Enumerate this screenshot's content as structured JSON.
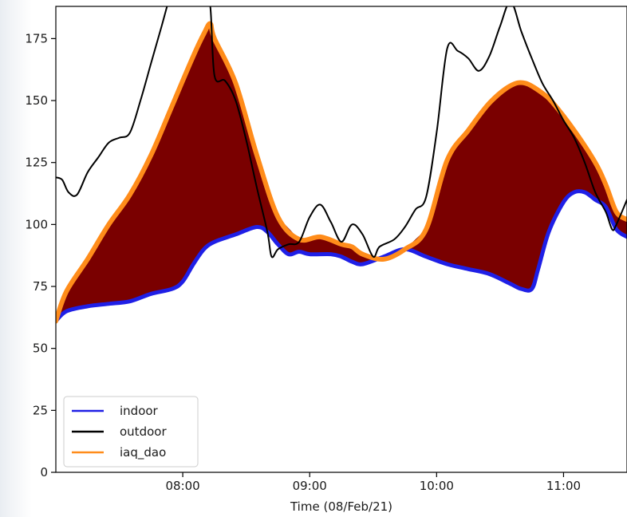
{
  "chart_data": {
    "type": "line",
    "xlabel": "Time (08/Feb/21)",
    "ylabel": "",
    "x_ticks": [
      "08:00",
      "09:00",
      "10:00",
      "11:00"
    ],
    "y_ticks": [
      0,
      25,
      50,
      75,
      100,
      125,
      150,
      175
    ],
    "xlim": [
      "07:00",
      "11:30"
    ],
    "ylim": [
      0,
      188
    ],
    "grid": false,
    "legend_position": "lower-left",
    "fill_between": {
      "upper": "iaq_dao",
      "lower": "indoor",
      "color": "#7a0000"
    },
    "series": [
      {
        "name": "indoor",
        "color": "#1f1fe6",
        "points": [
          [
            "07:00",
            61
          ],
          [
            "07:05",
            65
          ],
          [
            "07:15",
            67
          ],
          [
            "07:25",
            68
          ],
          [
            "07:35",
            69
          ],
          [
            "07:45",
            72
          ],
          [
            "07:55",
            74
          ],
          [
            "08:00",
            77
          ],
          [
            "08:05",
            84
          ],
          [
            "08:10",
            90
          ],
          [
            "08:15",
            93
          ],
          [
            "08:25",
            96
          ],
          [
            "08:35",
            99
          ],
          [
            "08:40",
            97
          ],
          [
            "08:45",
            92
          ],
          [
            "08:50",
            88
          ],
          [
            "08:55",
            89
          ],
          [
            "09:00",
            88
          ],
          [
            "09:10",
            88
          ],
          [
            "09:15",
            87
          ],
          [
            "09:20",
            85
          ],
          [
            "09:25",
            84
          ],
          [
            "09:35",
            87
          ],
          [
            "09:45",
            90
          ],
          [
            "09:55",
            87
          ],
          [
            "10:05",
            84
          ],
          [
            "10:15",
            82
          ],
          [
            "10:25",
            80
          ],
          [
            "10:35",
            76
          ],
          [
            "10:40",
            74
          ],
          [
            "10:45",
            74
          ],
          [
            "10:48",
            82
          ],
          [
            "10:53",
            97
          ],
          [
            "11:00",
            109
          ],
          [
            "11:05",
            113
          ],
          [
            "11:10",
            113
          ],
          [
            "11:15",
            110
          ],
          [
            "11:20",
            107
          ],
          [
            "11:25",
            98
          ],
          [
            "11:30",
            95
          ]
        ]
      },
      {
        "name": "outdoor",
        "color": "#000000",
        "points": [
          [
            "07:00",
            119
          ],
          [
            "07:03",
            118
          ],
          [
            "07:06",
            113
          ],
          [
            "07:10",
            112
          ],
          [
            "07:15",
            121
          ],
          [
            "07:20",
            127
          ],
          [
            "07:25",
            133
          ],
          [
            "07:30",
            135
          ],
          [
            "07:35",
            137
          ],
          [
            "07:40",
            150
          ],
          [
            "07:45",
            165
          ],
          [
            "07:50",
            180
          ],
          [
            "07:55",
            195
          ],
          [
            "08:00",
            205
          ],
          [
            "08:05",
            198
          ],
          [
            "08:10",
            195
          ],
          [
            "08:13",
            188
          ],
          [
            "08:15",
            160
          ],
          [
            "08:20",
            158
          ],
          [
            "08:25",
            150
          ],
          [
            "08:30",
            134
          ],
          [
            "08:35",
            115
          ],
          [
            "08:40",
            97
          ],
          [
            "08:42",
            87
          ],
          [
            "08:45",
            90
          ],
          [
            "08:50",
            92
          ],
          [
            "08:55",
            93
          ],
          [
            "09:00",
            103
          ],
          [
            "09:05",
            108
          ],
          [
            "09:10",
            101
          ],
          [
            "09:15",
            93
          ],
          [
            "09:20",
            100
          ],
          [
            "09:25",
            96
          ],
          [
            "09:30",
            87
          ],
          [
            "09:33",
            91
          ],
          [
            "09:40",
            94
          ],
          [
            "09:45",
            99
          ],
          [
            "09:50",
            106
          ],
          [
            "09:55",
            111
          ],
          [
            "10:00",
            137
          ],
          [
            "10:05",
            171
          ],
          [
            "10:10",
            170
          ],
          [
            "10:15",
            167
          ],
          [
            "10:20",
            162
          ],
          [
            "10:25",
            168
          ],
          [
            "10:30",
            180
          ],
          [
            "10:35",
            190
          ],
          [
            "10:40",
            178
          ],
          [
            "10:45",
            167
          ],
          [
            "10:50",
            157
          ],
          [
            "10:55",
            150
          ],
          [
            "11:00",
            142
          ],
          [
            "11:05",
            135
          ],
          [
            "11:10",
            125
          ],
          [
            "11:15",
            113
          ],
          [
            "11:20",
            105
          ],
          [
            "11:23",
            98
          ],
          [
            "11:25",
            100
          ],
          [
            "11:30",
            110
          ]
        ]
      },
      {
        "name": "iaq_dao",
        "color": "#ff8c1a",
        "points": [
          [
            "07:00",
            61
          ],
          [
            "07:05",
            73
          ],
          [
            "07:15",
            86
          ],
          [
            "07:25",
            100
          ],
          [
            "07:35",
            112
          ],
          [
            "07:45",
            128
          ],
          [
            "07:55",
            148
          ],
          [
            "08:05",
            168
          ],
          [
            "08:10",
            177
          ],
          [
            "08:13",
            181
          ],
          [
            "08:15",
            175
          ],
          [
            "08:25",
            157
          ],
          [
            "08:35",
            128
          ],
          [
            "08:45",
            103
          ],
          [
            "08:55",
            94
          ],
          [
            "09:05",
            95
          ],
          [
            "09:15",
            92
          ],
          [
            "09:20",
            91
          ],
          [
            "09:25",
            88
          ],
          [
            "09:35",
            86
          ],
          [
            "09:45",
            90
          ],
          [
            "09:55",
            98
          ],
          [
            "10:05",
            126
          ],
          [
            "10:15",
            138
          ],
          [
            "10:25",
            149
          ],
          [
            "10:35",
            156
          ],
          [
            "10:42",
            157
          ],
          [
            "10:50",
            153
          ],
          [
            "10:55",
            149
          ],
          [
            "11:05",
            138
          ],
          [
            "11:15",
            125
          ],
          [
            "11:20",
            116
          ],
          [
            "11:25",
            105
          ],
          [
            "11:30",
            102
          ]
        ]
      }
    ]
  }
}
